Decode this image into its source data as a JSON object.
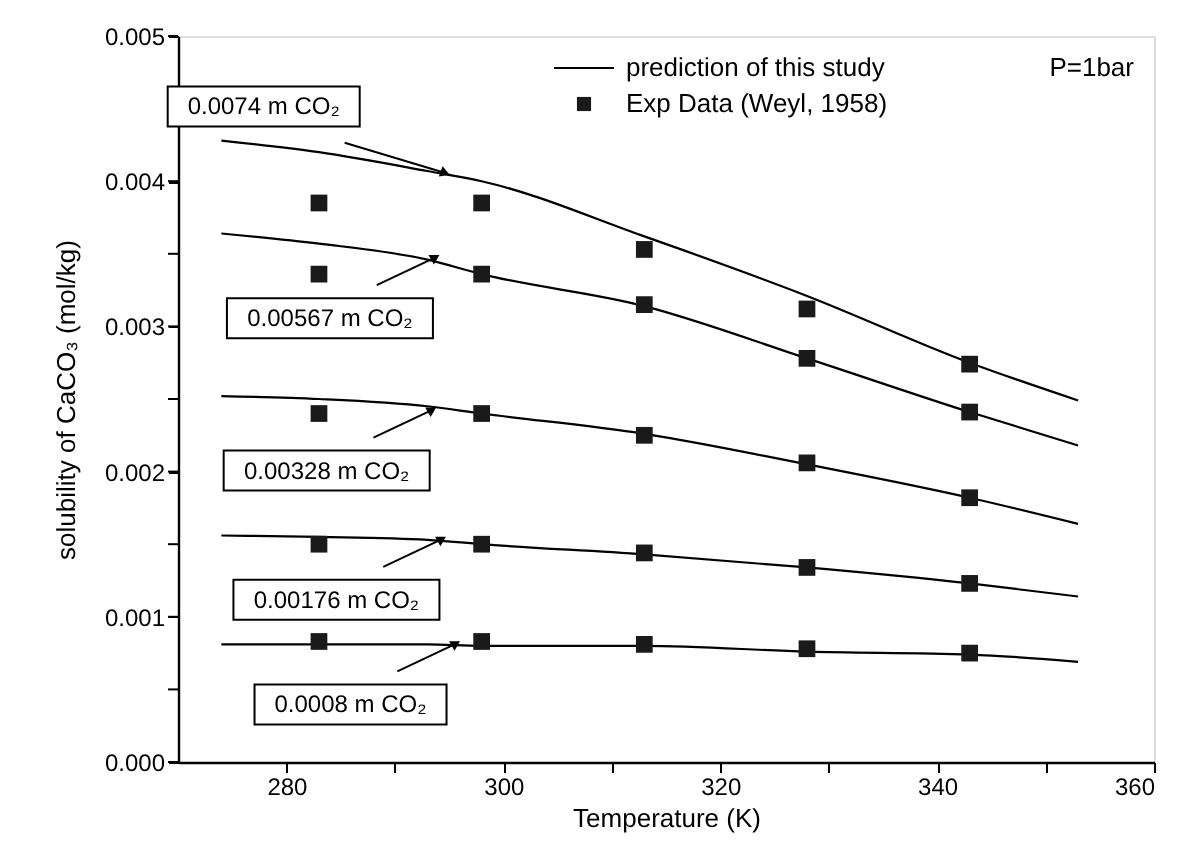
{
  "chart_data": {
    "type": "line",
    "xlabel": "Temperature (K)",
    "ylabel": "solubility of CaCO₃ (mol/kg)",
    "xlim": [
      270,
      360
    ],
    "ylim": [
      0,
      0.005
    ],
    "xticks": [
      280,
      {
        "value": 290,
        "label": null
      },
      300,
      {
        "value": 310,
        "label": null
      },
      320,
      {
        "value": 330,
        "label": null
      },
      340,
      {
        "value": 350,
        "label": null
      },
      360
    ],
    "yticks": [
      {
        "value": 0,
        "label": "0.000"
      },
      {
        "value": 0.0005,
        "label": null
      },
      {
        "value": 0.001,
        "label": "0.001"
      },
      {
        "value": 0.0015,
        "label": null
      },
      {
        "value": 0.002,
        "label": "0.002"
      },
      {
        "value": 0.0025,
        "label": null
      },
      {
        "value": 0.003,
        "label": "0.003"
      },
      {
        "value": 0.0035,
        "label": null
      },
      {
        "value": 0.004,
        "label": "0.004"
      },
      {
        "value": 0.0045,
        "label": null
      },
      {
        "value": 0.005,
        "label": "0.005"
      }
    ],
    "grid": false,
    "legend": "top right",
    "series": [
      {
        "name": "prediction of this study",
        "type": "line",
        "color": "#000000",
        "marker": "none",
        "line_style": "solid",
        "x": [
          274,
          283,
          293,
          298,
          313,
          328,
          343,
          353
        ],
        "values": [
          0.00428,
          0.0042,
          0.00407,
          0.004,
          0.00362,
          0.00321,
          0.00275,
          0.00249
        ]
      },
      {
        "type": "line",
        "color": "#000000",
        "marker": "none",
        "line_style": "solid",
        "x": [
          274,
          283,
          293,
          298,
          313,
          328,
          343,
          353
        ],
        "values": [
          0.00364,
          0.00357,
          0.00346,
          0.00336,
          0.00314,
          0.00278,
          0.00241,
          0.00218
        ]
      },
      {
        "type": "line",
        "color": "#000000",
        "marker": "none",
        "line_style": "solid",
        "x": [
          274,
          283,
          293,
          298,
          313,
          328,
          343,
          353
        ],
        "values": [
          0.00252,
          0.0025,
          0.00245,
          0.0024,
          0.00226,
          0.00205,
          0.00182,
          0.00164
        ]
      },
      {
        "type": "line",
        "color": "#000000",
        "marker": "none",
        "line_style": "solid",
        "x": [
          274,
          283,
          293,
          298,
          313,
          328,
          343,
          353
        ],
        "values": [
          0.00156,
          0.00155,
          0.00153,
          0.0015,
          0.00143,
          0.00134,
          0.00123,
          0.00114
        ]
      },
      {
        "type": "line",
        "color": "#000000",
        "marker": "none",
        "line_style": "solid",
        "x": [
          274,
          283,
          293,
          298,
          313,
          328,
          343,
          353
        ],
        "values": [
          0.00081,
          0.00081,
          0.00081,
          0.0008,
          0.0008,
          0.00076,
          0.00074,
          0.00069
        ]
      },
      {
        "name": "Exp Data (Weyl, 1958)",
        "type": "scatter",
        "color": "#1a1a1a",
        "marker": "square",
        "x": [
          283,
          298,
          313,
          328,
          343
        ],
        "values": [
          0.00385,
          0.00385,
          0.00353,
          0.00312,
          0.00274
        ]
      },
      {
        "type": "scatter",
        "color": "#1a1a1a",
        "marker": "square",
        "x": [
          283,
          298,
          313,
          328,
          343
        ],
        "values": [
          0.00336,
          0.00336,
          0.00315,
          0.00278,
          0.00241
        ]
      },
      {
        "type": "scatter",
        "color": "#1a1a1a",
        "marker": "square",
        "x": [
          283,
          298,
          313,
          328,
          343
        ],
        "values": [
          0.0024,
          0.0024,
          0.00225,
          0.00206,
          0.00182
        ]
      },
      {
        "type": "scatter",
        "color": "#1a1a1a",
        "marker": "square",
        "x": [
          283,
          298,
          313,
          328,
          343
        ],
        "values": [
          0.0015,
          0.0015,
          0.00144,
          0.00134,
          0.00123
        ]
      },
      {
        "type": "scatter",
        "color": "#1a1a1a",
        "marker": "square",
        "x": [
          283,
          298,
          313,
          328,
          343
        ],
        "values": [
          0.00083,
          0.00083,
          0.00081,
          0.00078,
          0.00075
        ]
      }
    ],
    "annotations": [
      {
        "text": "0.0074 m CO₂",
        "x": 294.5,
        "y": 0.00406
      },
      {
        "text": "0.00567 m CO₂",
        "x": 293.6,
        "y": 0.00347
      },
      {
        "text": "0.00328 m CO₂",
        "x": 293.3,
        "y": 0.00242
      },
      {
        "text": "0.00176 m CO₂",
        "x": 294.2,
        "y": 0.00153
      },
      {
        "text": "0.0008 m CO₂",
        "x": 295.5,
        "y": 0.00081
      },
      "P=1bar"
    ]
  }
}
